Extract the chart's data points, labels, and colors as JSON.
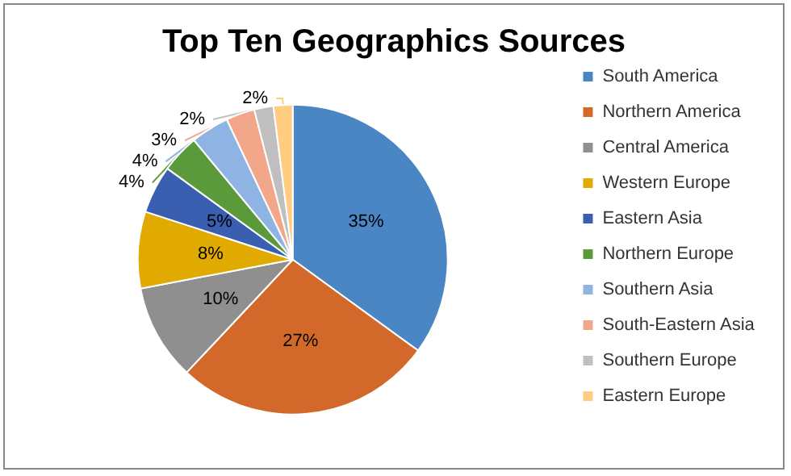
{
  "chart_data": {
    "type": "pie",
    "title": "Top Ten Geographics Sources",
    "categories": [
      "South America",
      "Northern America",
      "Central America",
      "Western Europe",
      "Eastern Asia",
      "Northern Europe",
      "Southern Asia",
      "South-Eastern Asia",
      "Southern Europe",
      "Eastern Europe"
    ],
    "values": [
      35,
      27,
      10,
      8,
      5,
      4,
      4,
      3,
      2,
      2
    ],
    "colors": [
      "#4a86c4",
      "#d2692a",
      "#8f8f8f",
      "#e0aa00",
      "#3a5fb0",
      "#5a9a3a",
      "#8fb4e3",
      "#f2a68a",
      "#bfbfbf",
      "#ffcc80"
    ],
    "value_labels": [
      "35%",
      "27%",
      "10%",
      "8%",
      "5%",
      "4%",
      "4%",
      "3%",
      "2%",
      "2%"
    ],
    "legend": "right"
  }
}
